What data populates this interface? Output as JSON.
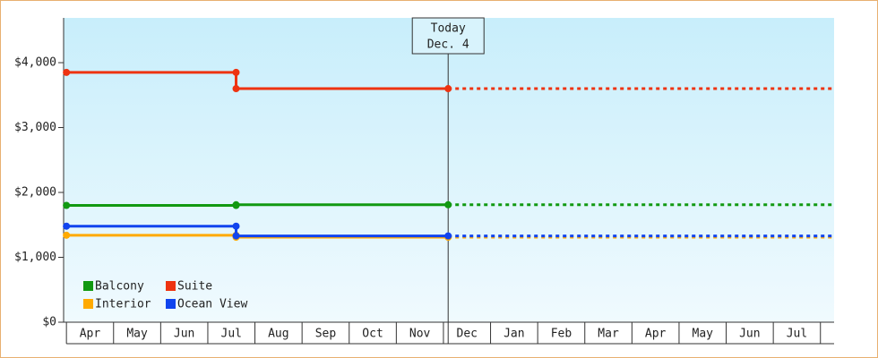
{
  "chart_data": {
    "type": "step-line",
    "categories": [
      "Apr",
      "May",
      "Jun",
      "Jul",
      "Aug",
      "Sep",
      "Oct",
      "Nov",
      "Dec",
      "Jan",
      "Feb",
      "Mar",
      "Apr",
      "May",
      "Jun",
      "Jul"
    ],
    "xlim": [
      -0.06,
      16.29
    ],
    "ylim": [
      0,
      4690
    ],
    "yticks": [
      {
        "value": 0,
        "label": "$0"
      },
      {
        "value": 1000,
        "label": "$1,000"
      },
      {
        "value": 2000,
        "label": "$2,000"
      },
      {
        "value": 3000,
        "label": "$3,000"
      },
      {
        "value": 4000,
        "label": "$4,000"
      }
    ],
    "grid": false,
    "today": {
      "label": "Today",
      "date": "Dec. 4",
      "x": 8.1
    },
    "projection": true,
    "legend": "bottom-left",
    "x": [
      0,
      3.6,
      3.6,
      8.1
    ],
    "series": [
      {
        "name": "Balcony",
        "color": "#119911",
        "values": [
          1800,
          1800,
          1810,
          1810
        ]
      },
      {
        "name": "Suite",
        "color": "#ee3311",
        "values": [
          3850,
          3850,
          3600,
          3600
        ]
      },
      {
        "name": "Interior",
        "color": "#ffaa00",
        "values": [
          1340,
          1340,
          1310,
          1310
        ]
      },
      {
        "name": "Ocean View",
        "color": "#1144ee",
        "values": [
          1480,
          1480,
          1330,
          1330
        ]
      }
    ]
  }
}
